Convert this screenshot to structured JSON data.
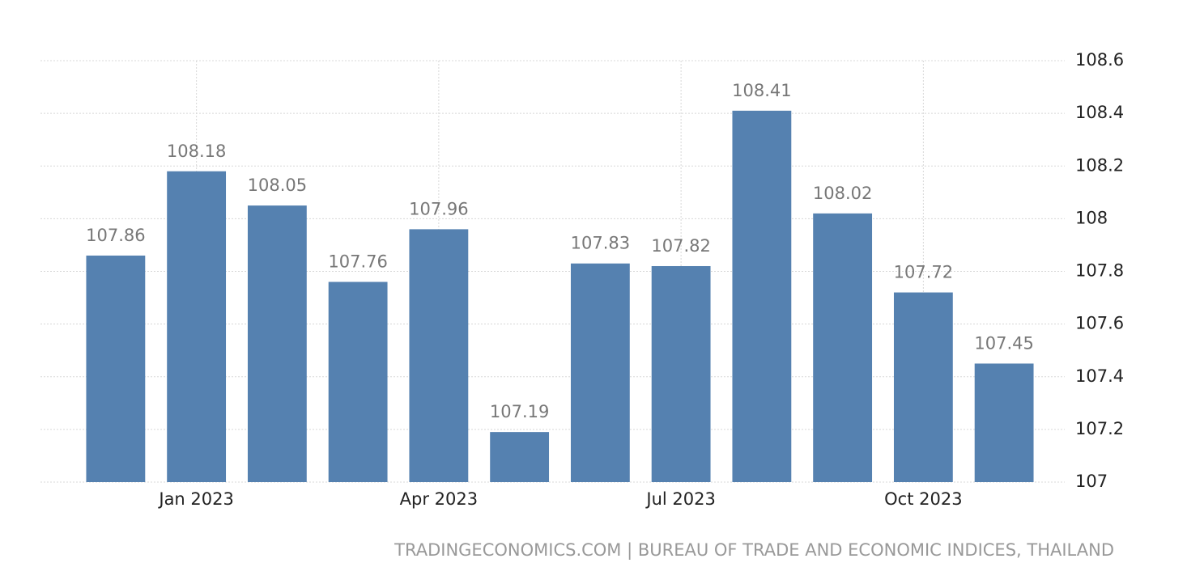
{
  "chart_data": {
    "type": "bar",
    "categories": [
      null,
      "Jan 2023",
      null,
      null,
      "Apr 2023",
      null,
      null,
      "Jul 2023",
      null,
      null,
      "Oct 2023",
      null
    ],
    "values": [
      107.86,
      108.18,
      108.05,
      107.76,
      107.96,
      107.19,
      107.83,
      107.82,
      108.41,
      108.02,
      107.72,
      107.45
    ],
    "color": "#5581b0",
    "ylim": [
      107,
      108.6
    ],
    "yticks": [
      107,
      107.2,
      107.4,
      107.6,
      107.8,
      108,
      108.2,
      108.4,
      108.6
    ],
    "grid": true,
    "source": "TRADINGECONOMICS.COM | BUREAU OF TRADE AND ECONOMIC INDICES, THAILAND"
  }
}
